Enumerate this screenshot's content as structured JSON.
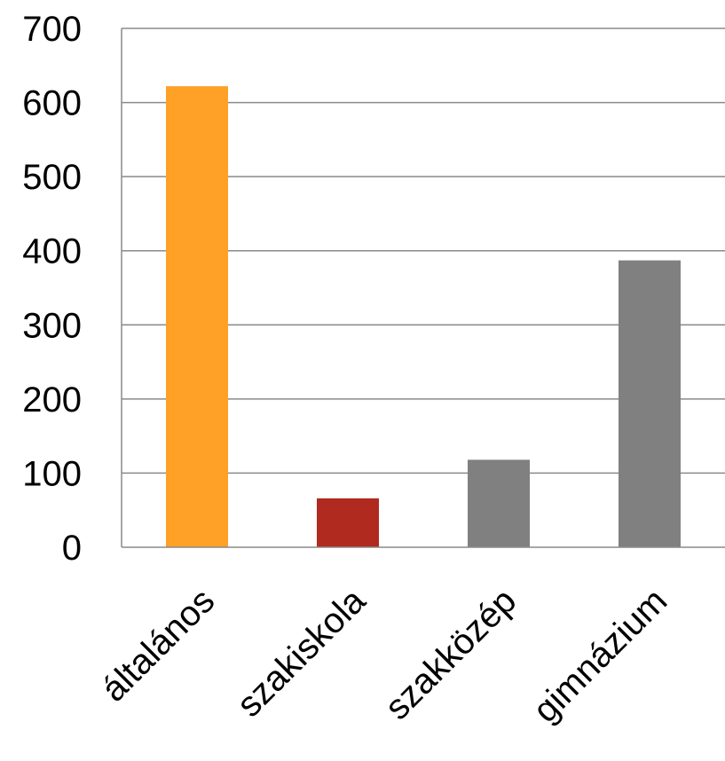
{
  "chart_data": {
    "type": "bar",
    "title": "",
    "xlabel": "",
    "ylabel": "",
    "categories": [
      "általános",
      "szakiskola",
      "szakközép",
      "gimnázium"
    ],
    "values": [
      622,
      66,
      118,
      387
    ],
    "colors": [
      "#FFA126",
      "#B02A1F",
      "#808080",
      "#808080"
    ],
    "ylim": [
      0,
      700
    ],
    "yticks": [
      0,
      100,
      200,
      300,
      400,
      500,
      600,
      700
    ],
    "grid": true,
    "legend": "none"
  }
}
